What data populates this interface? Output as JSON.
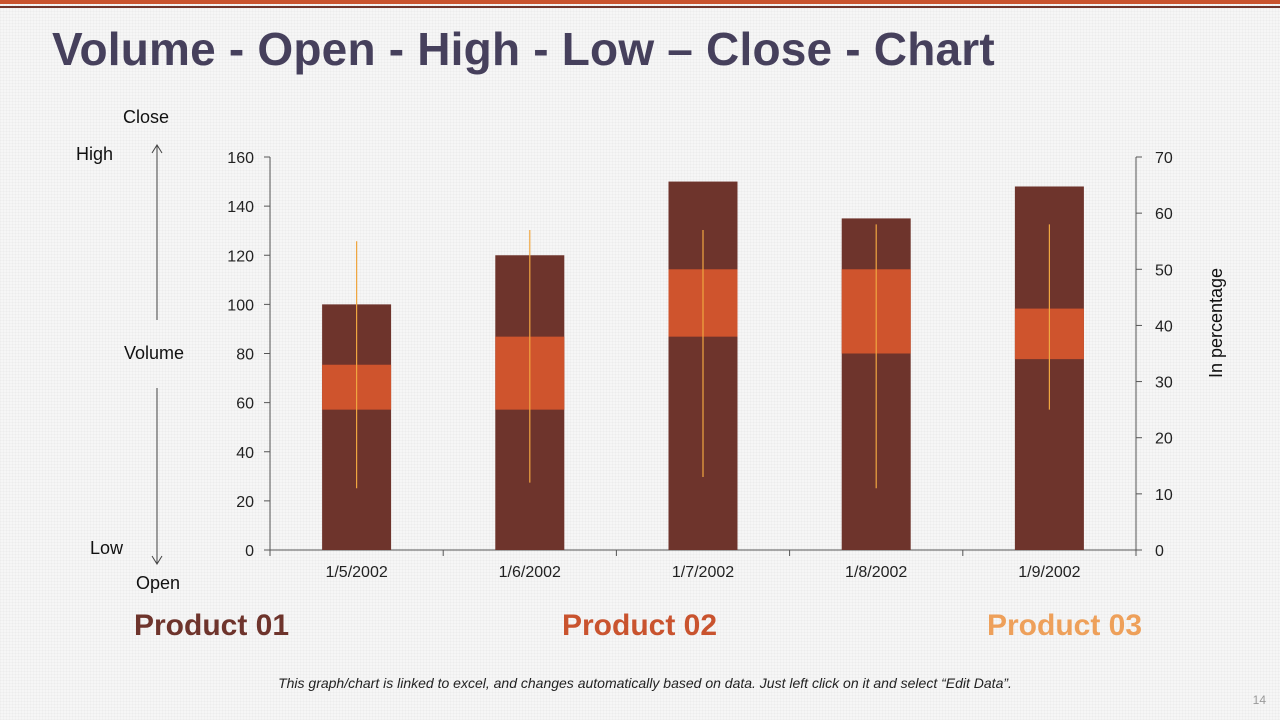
{
  "slide": {
    "title": "Volume - Open - High - Low – Close - Chart",
    "footnote": "This graph/chart is linked to excel, and changes automatically based on data. Just left click on it and select “Edit Data”.",
    "page_number": "14"
  },
  "legend_labels": {
    "close": "Close",
    "high": "High",
    "volume": "Volume",
    "low": "Low",
    "open": "Open"
  },
  "products": [
    {
      "label": "Product 01",
      "color": "#6e342c"
    },
    {
      "label": "Product 02",
      "color": "#c9532e"
    },
    {
      "label": "Product 03",
      "color": "#eea05a"
    }
  ],
  "colors": {
    "volume": "#6e342c",
    "open_close_box": "#cf542d",
    "high_low_line": "#f0a640",
    "axis": "#555555"
  },
  "chart_data": {
    "type": "bar",
    "categories": [
      "1/5/2002",
      "1/6/2002",
      "1/7/2002",
      "1/8/2002",
      "1/9/2002"
    ],
    "series": [
      {
        "name": "Volume",
        "axis": "left",
        "values": [
          100,
          120,
          150,
          135,
          148
        ]
      },
      {
        "name": "Open",
        "axis": "right",
        "values": [
          25,
          25,
          38,
          35,
          34
        ]
      },
      {
        "name": "High",
        "axis": "right",
        "values": [
          55,
          57,
          57,
          58,
          58
        ]
      },
      {
        "name": "Low",
        "axis": "right",
        "values": [
          11,
          12,
          13,
          11,
          25
        ]
      },
      {
        "name": "Close",
        "axis": "right",
        "values": [
          33,
          38,
          50,
          50,
          43
        ]
      }
    ],
    "y_left": {
      "min": 0,
      "max": 160,
      "ticks": [
        "0",
        "20",
        "40",
        "60",
        "80",
        "100",
        "120",
        "140",
        "160"
      ]
    },
    "y_right": {
      "min": 0,
      "max": 70,
      "ticks": [
        "0",
        "10",
        "20",
        "30",
        "40",
        "50",
        "60",
        "70"
      ],
      "label": "In percentage"
    },
    "grid": false,
    "legend": "none"
  }
}
